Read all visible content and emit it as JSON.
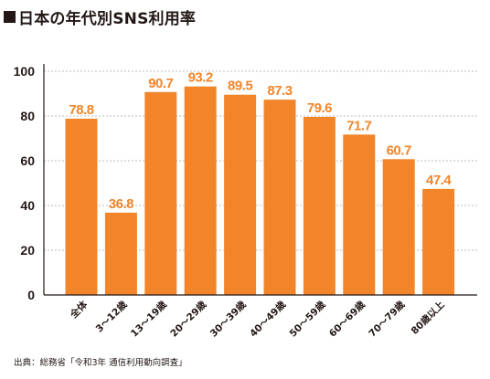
{
  "title": "日本の年代別SNS利用率",
  "source": "出典：総務省「令和3年 通信利用動向調査」",
  "chart_data": {
    "type": "bar",
    "categories": [
      "全体",
      "3～12歳",
      "13～19歳",
      "20～29歳",
      "30～39歳",
      "40～49歳",
      "50～59歳",
      "60～69歳",
      "70～79歳",
      "80歳以上"
    ],
    "values": [
      78.8,
      36.8,
      90.7,
      93.2,
      89.5,
      87.3,
      79.6,
      71.7,
      60.7,
      47.4
    ],
    "value_labels": [
      "78.8",
      "36.8",
      "90.7",
      "93.2",
      "89.5",
      "87.3",
      "79.6",
      "71.7",
      "60.7",
      "47.4"
    ],
    "y_ticks": [
      "0",
      "20",
      "40",
      "60",
      "80",
      "100"
    ],
    "ylim": [
      0,
      100
    ],
    "grid": true,
    "bar_color": "#F28529",
    "label_color": "#F28529"
  }
}
